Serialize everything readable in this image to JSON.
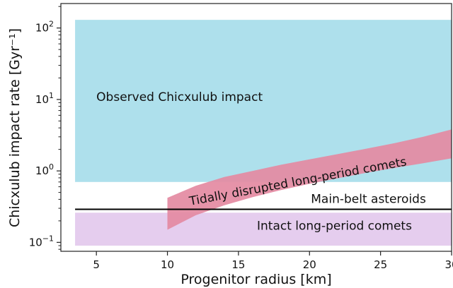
{
  "chart_data": {
    "type": "area",
    "title": "",
    "xlabel": "Progenitor radius  [km]",
    "ylabel": "Chicxulub impact rate [Gyr⁻¹]",
    "xlim": [
      2.5,
      30
    ],
    "ylim": [
      0.075,
      220
    ],
    "y_scale": "log",
    "grid": false,
    "x_ticks": [
      5,
      10,
      15,
      20,
      25,
      30
    ],
    "x_tick_labels": [
      "5",
      "10",
      "15",
      "20",
      "25",
      "30"
    ],
    "y_ticks": [
      0.1,
      1,
      10,
      100
    ],
    "y_tick_base": "10",
    "y_tick_exponents": [
      "−1",
      "0",
      "1",
      "2"
    ],
    "regions": [
      {
        "name": "Observed Chicxulub impact",
        "kind": "band",
        "x_range": [
          3.5,
          30
        ],
        "y_range": [
          0.7,
          130
        ],
        "color": "#aee0ec"
      },
      {
        "name": "Intact long-period comets",
        "kind": "band",
        "x_range": [
          3.5,
          30
        ],
        "y_range": [
          0.09,
          0.26
        ],
        "color": "#e5cdee"
      },
      {
        "name": "Tidally disrupted long-period comets",
        "kind": "curve-band",
        "color": "#e48aa2",
        "x": [
          10,
          12,
          14,
          16,
          18,
          20,
          22,
          24,
          26,
          28,
          30
        ],
        "y_low": [
          0.15,
          0.24,
          0.33,
          0.43,
          0.54,
          0.66,
          0.79,
          0.94,
          1.1,
          1.28,
          1.5
        ],
        "y_high": [
          0.42,
          0.62,
          0.82,
          1.0,
          1.22,
          1.45,
          1.72,
          2.05,
          2.45,
          3.0,
          3.8
        ]
      }
    ],
    "series": [
      {
        "name": "Main-belt asteroids",
        "kind": "hline",
        "x": [
          3.5,
          30
        ],
        "y": [
          0.29,
          0.29
        ],
        "color": "#000000"
      }
    ],
    "annotations": {
      "observed": "Observed Chicxulub impact",
      "tidal": "Tidally disrupted long-period comets",
      "mainbelt": "Main-belt asteroids",
      "intact": "Intact long-period comets"
    }
  }
}
